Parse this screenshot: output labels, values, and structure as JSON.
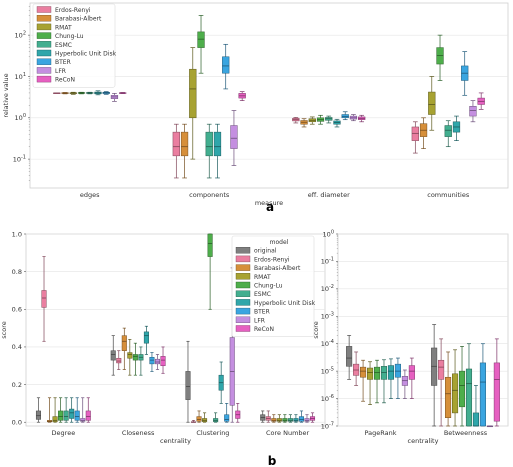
{
  "panel_labels": {
    "a": "a",
    "b": "b"
  },
  "colors": {
    "original": "#7f7f7f",
    "Erdos-Renyi": "#ea7ea0",
    "Barabasi-Albert": "#d68f3a",
    "RMAT": "#a7a232",
    "Chung-Lu": "#4eae4b",
    "ESMC": "#42ae8f",
    "Hyperbolic Unit Disk": "#2fa6aa",
    "BTER": "#3aa5e0",
    "LFR": "#c48fe0",
    "ReCoN": "#e660c1"
  },
  "chart_data": [
    {
      "type": "box",
      "panel": "a",
      "xlabel": "measure",
      "ylabel": "relative value",
      "yscale": "log",
      "ylim": [
        0.02,
        600
      ],
      "yticks": [
        {
          "value": 0.1,
          "label": "10^-1"
        },
        {
          "value": 1,
          "label": "10^0"
        },
        {
          "value": 10,
          "label": "10^1"
        },
        {
          "value": 100,
          "label": "10^2"
        }
      ],
      "categories": [
        "edges",
        "components",
        "eff. diameter",
        "communities"
      ],
      "legend": {
        "position": "top-left",
        "entries": [
          "Erdos-Renyi",
          "Barabasi-Albert",
          "RMAT",
          "Chung-Lu",
          "ESMC",
          "Hyperbolic Unit Disk",
          "BTER",
          "LFR",
          "ReCoN"
        ]
      },
      "series": [
        {
          "name": "Erdos-Renyi",
          "boxes": [
            [
              4,
              4,
              4,
              4,
              4
            ],
            [
              0.035,
              0.12,
              0.2,
              0.45,
              0.7
            ],
            [
              0.75,
              0.84,
              0.9,
              0.97,
              1.02
            ],
            [
              0.14,
              0.28,
              0.42,
              0.6,
              0.8
            ]
          ]
        },
        {
          "name": "Barabasi-Albert",
          "boxes": [
            [
              3.8,
              3.9,
              3.95,
              4.05,
              4.1
            ],
            [
              0.035,
              0.12,
              0.2,
              0.45,
              0.7
            ],
            [
              0.6,
              0.7,
              0.78,
              0.86,
              0.95
            ],
            [
              0.18,
              0.35,
              0.5,
              0.72,
              1.0
            ]
          ]
        },
        {
          "name": "RMAT",
          "boxes": [
            [
              3.7,
              3.85,
              3.95,
              4.05,
              4.15
            ],
            [
              0.1,
              1.0,
              5.0,
              15,
              50
            ],
            [
              0.7,
              0.8,
              0.87,
              0.95,
              1.05
            ],
            [
              0.5,
              1.2,
              2.1,
              4.2,
              10
            ]
          ]
        },
        {
          "name": "Chung-Lu",
          "boxes": [
            [
              3.8,
              3.9,
              4.0,
              4.08,
              4.15
            ],
            [
              12,
              50,
              80,
              120,
              300
            ],
            [
              0.7,
              0.82,
              0.9,
              1.0,
              1.15
            ],
            [
              8,
              20,
              32,
              50,
              100
            ]
          ]
        },
        {
          "name": "ESMC",
          "boxes": [
            [
              3.8,
              3.9,
              4.0,
              4.08,
              4.15
            ],
            [
              0.035,
              0.12,
              0.2,
              0.45,
              0.7
            ],
            [
              0.75,
              0.87,
              0.95,
              1.02,
              1.1
            ],
            [
              0.2,
              0.35,
              0.5,
              0.65,
              0.85
            ]
          ]
        },
        {
          "name": "Hyperbolic Unit Disk",
          "boxes": [
            [
              3.6,
              3.8,
              4.0,
              4.2,
              4.5
            ],
            [
              0.035,
              0.12,
              0.2,
              0.45,
              0.7
            ],
            [
              0.6,
              0.7,
              0.77,
              0.84,
              0.92
            ],
            [
              0.28,
              0.45,
              0.6,
              0.8,
              1.1
            ]
          ]
        },
        {
          "name": "BTER",
          "boxes": [
            [
              3.7,
              3.85,
              4.0,
              4.15,
              4.3
            ],
            [
              5,
              12,
              18,
              30,
              60
            ],
            [
              0.9,
              1.0,
              1.08,
              1.2,
              1.4
            ],
            [
              3.5,
              8,
              12,
              18,
              40
            ]
          ]
        },
        {
          "name": "LFR",
          "boxes": [
            [
              2.5,
              2.9,
              3.2,
              3.5,
              3.9
            ],
            [
              0.07,
              0.18,
              0.32,
              0.65,
              1.5
            ],
            [
              0.85,
              0.93,
              1.0,
              1.1,
              1.2
            ],
            [
              0.8,
              1.1,
              1.5,
              1.9,
              2.6
            ]
          ]
        },
        {
          "name": "ReCoN",
          "boxes": [
            [
              3.85,
              3.95,
              4.0,
              4.05,
              4.1
            ],
            [
              2.6,
              3.0,
              3.4,
              3.9,
              4.3
            ],
            [
              0.8,
              0.9,
              0.97,
              1.05,
              1.15
            ],
            [
              1.6,
              2.1,
              2.5,
              3.0,
              4.0
            ]
          ]
        }
      ]
    },
    {
      "type": "box",
      "panel": "b-left",
      "xlabel": "centrality",
      "ylabel": "score",
      "ylim": [
        -0.02,
        1.0
      ],
      "yticks": [
        "0.0",
        "0.2",
        "0.4",
        "0.6",
        "0.8",
        "1.0"
      ],
      "categories": [
        "Degree",
        "Closeness",
        "Clustering",
        "Core Number"
      ],
      "legend": {
        "title": "model",
        "position": "upper-center",
        "entries": [
          "original",
          "Erdos-Renyi",
          "Barabasi-Albert",
          "RMAT",
          "Chung-Lu",
          "ESMC",
          "Hyperbolic Unit Disk",
          "BTER",
          "LFR",
          "ReCoN"
        ]
      },
      "series": [
        {
          "name": "original",
          "boxes": [
            [
              0,
              0.015,
              0.035,
              0.06,
              0.13
            ],
            [
              0.25,
              0.33,
              0.36,
              0.38,
              0.46
            ],
            [
              0.0,
              0.12,
              0.19,
              0.27,
              0.43
            ],
            [
              0,
              0.01,
              0.025,
              0.04,
              0.06
            ]
          ]
        },
        {
          "name": "Erdos-Renyi",
          "boxes": [
            [
              0.43,
              0.61,
              0.66,
              0.7,
              0.88
            ],
            [
              0.28,
              0.315,
              0.325,
              0.34,
              0.38
            ],
            [
              0,
              0,
              0,
              0.003,
              0.01
            ],
            [
              0,
              0.01,
              0.02,
              0.03,
              0.06
            ]
          ]
        },
        {
          "name": "Barabasi-Albert",
          "boxes": [
            [
              0,
              0.002,
              0.005,
              0.01,
              0.13
            ],
            [
              0.28,
              0.38,
              0.43,
              0.46,
              0.5
            ],
            [
              0,
              0.005,
              0.015,
              0.03,
              0.06
            ],
            [
              0,
              0.005,
              0.01,
              0.02,
              0.04
            ]
          ]
        },
        {
          "name": "RMAT",
          "boxes": [
            [
              0,
              0.003,
              0.01,
              0.03,
              0.13
            ],
            [
              0.25,
              0.34,
              0.36,
              0.37,
              0.44
            ],
            [
              0,
              0.003,
              0.01,
              0.02,
              0.05
            ],
            [
              0,
              0.005,
              0.01,
              0.02,
              0.04
            ]
          ]
        },
        {
          "name": "Chung-Lu",
          "boxes": [
            [
              0,
              0.01,
              0.03,
              0.06,
              0.13
            ],
            [
              0.25,
              0.33,
              0.35,
              0.36,
              0.42
            ],
            [
              0.6,
              0.88,
              0.95,
              1.0,
              1.0
            ],
            [
              0,
              0.005,
              0.01,
              0.02,
              0.04
            ]
          ]
        },
        {
          "name": "ESMC",
          "boxes": [
            [
              0,
              0.01,
              0.03,
              0.06,
              0.13
            ],
            [
              0.25,
              0.33,
              0.345,
              0.36,
              0.4
            ],
            [
              0,
              0.003,
              0.01,
              0.02,
              0.05
            ],
            [
              0,
              0.005,
              0.01,
              0.02,
              0.04
            ]
          ]
        },
        {
          "name": "Hyperbolic Unit Disk",
          "boxes": [
            [
              0,
              0.02,
              0.05,
              0.07,
              0.13
            ],
            [
              0.36,
              0.42,
              0.46,
              0.48,
              0.51
            ],
            [
              0.1,
              0.17,
              0.21,
              0.25,
              0.32
            ],
            [
              0,
              0.005,
              0.01,
              0.02,
              0.04
            ]
          ]
        },
        {
          "name": "BTER",
          "boxes": [
            [
              0,
              0.01,
              0.03,
              0.06,
              0.13
            ],
            [
              0.27,
              0.31,
              0.33,
              0.345,
              0.37
            ],
            [
              0,
              0.005,
              0.015,
              0.04,
              0.1
            ],
            [
              0,
              0.005,
              0.015,
              0.03,
              0.06
            ]
          ]
        },
        {
          "name": "LFR",
          "boxes": [
            [
              0,
              0.005,
              0.01,
              0.02,
              0.13
            ],
            [
              0.28,
              0.31,
              0.32,
              0.335,
              0.36
            ],
            [
              0,
              0.09,
              0.27,
              0.45,
              0.82
            ],
            [
              0,
              0.005,
              0.01,
              0.02,
              0.04
            ]
          ]
        },
        {
          "name": "ReCoN",
          "boxes": [
            [
              0,
              0.01,
              0.03,
              0.06,
              0.13
            ],
            [
              0.26,
              0.3,
              0.33,
              0.35,
              0.4
            ],
            [
              0,
              0.02,
              0.04,
              0.06,
              0.1
            ],
            [
              0,
              0.01,
              0.02,
              0.03,
              0.05
            ]
          ]
        }
      ]
    },
    {
      "type": "box",
      "panel": "b-right",
      "xlabel": "centrality",
      "ylabel": "score",
      "yscale": "log",
      "ylim": [
        1e-07,
        1
      ],
      "yticks": [
        {
          "value": 1e-07,
          "label": "10^-7"
        },
        {
          "value": 1e-06,
          "label": "10^-6"
        },
        {
          "value": 1e-05,
          "label": "10^-5"
        },
        {
          "value": 0.0001,
          "label": "10^-4"
        },
        {
          "value": 0.001,
          "label": "10^-3"
        },
        {
          "value": 0.01,
          "label": "10^-2"
        },
        {
          "value": 0.1,
          "label": "10^-1"
        },
        {
          "value": 1,
          "label": "10^0"
        }
      ],
      "categories": [
        "PageRank",
        "Betweenness"
      ],
      "series": [
        {
          "name": "original",
          "boxes": [
            [
              5e-06,
              1.5e-05,
              3e-05,
              8e-05,
              0.0002
            ],
            [
              1e-07,
              3e-06,
              1.5e-05,
              7e-05,
              0.0005
            ]
          ]
        },
        {
          "name": "Erdos-Renyi",
          "boxes": [
            [
              3e-06,
              7e-06,
              1.1e-05,
              1.8e-05,
              5e-05
            ],
            [
              1e-07,
              5e-06,
              1.4e-05,
              2.5e-05,
              0.00015
            ]
          ]
        },
        {
          "name": "Barabasi-Albert",
          "boxes": [
            [
              8e-07,
              6e-06,
              1e-05,
              1.4e-05,
              2.5e-05
            ],
            [
              1e-07,
              2e-07,
              1.5e-06,
              6e-06,
              5e-05
            ]
          ]
        },
        {
          "name": "RMAT",
          "boxes": [
            [
              6e-07,
              5e-06,
              9e-06,
              1.3e-05,
              2.2e-05
            ],
            [
              1e-07,
              3e-07,
              2e-06,
              8e-06,
              6e-05
            ]
          ]
        },
        {
          "name": "Chung-Lu",
          "boxes": [
            [
              7e-07,
              5e-06,
              9e-06,
              1.4e-05,
              2.5e-05
            ],
            [
              1e-07,
              5e-07,
              3e-06,
              1e-05,
              8e-05
            ]
          ]
        },
        {
          "name": "ESMC",
          "boxes": [
            [
              7e-07,
              5e-06,
              9e-06,
              1.5e-05,
              2.6e-05
            ],
            [
              1e-07,
              1e-07,
              3.5e-06,
              1.2e-05,
              0.0001
            ]
          ]
        },
        {
          "name": "Hyperbolic Unit Disk",
          "boxes": [
            [
              1e-06,
              5e-06,
              1e-05,
              1.6e-05,
              2.8e-05
            ],
            [
              1e-07,
              1e-07,
              1e-07,
              3e-07,
              3e-06
            ]
          ]
        },
        {
          "name": "BTER",
          "boxes": [
            [
              1e-06,
              6e-06,
              1e-05,
              1.8e-05,
              3e-05
            ],
            [
              1e-07,
              1e-07,
              4e-06,
              2e-05,
              0.0001
            ]
          ]
        },
        {
          "name": "LFR",
          "boxes": [
            [
              1e-06,
              3e-06,
              4.5e-06,
              6.5e-06,
              1.1e-05
            ],
            [
              1e-07,
              1e-07,
              1e-07,
              1e-07,
              1e-07
            ]
          ]
        },
        {
          "name": "ReCoN",
          "boxes": [
            [
              1e-06,
              5e-06,
              1e-05,
              1.6e-05,
              3e-05
            ],
            [
              1e-07,
              1.5e-07,
              5e-06,
              2e-05,
              0.00015
            ]
          ]
        }
      ]
    }
  ]
}
